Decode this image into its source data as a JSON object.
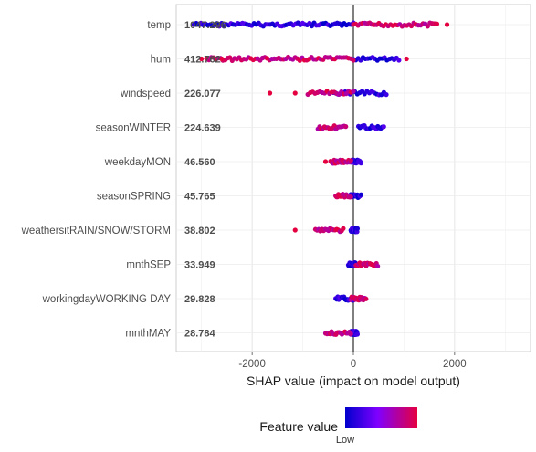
{
  "chart_data": {
    "type": "scatter",
    "subtype": "shap-summary",
    "xlabel": "SHAP value (impact on model output)",
    "xlim": [
      -3500,
      3500
    ],
    "x_ticks": [
      -2000,
      0,
      2000
    ],
    "x_tick_labels": [
      "-2000",
      "0",
      "2000"
    ],
    "grid": true,
    "zero_line": true,
    "features": [
      {
        "name": "temp",
        "mean_abs_shap": "1047.296",
        "low_range": [
          -3150,
          0
        ],
        "high_range": [
          0,
          1650
        ],
        "outliers": [
          {
            "x": -3100,
            "level": "low"
          },
          {
            "x": 1850,
            "level": "high"
          }
        ]
      },
      {
        "name": "hum",
        "mean_abs_shap": "412.762",
        "low_range": [
          0,
          900
        ],
        "high_range": [
          -2900,
          0
        ],
        "outliers": [
          {
            "x": -3000,
            "level": "high"
          },
          {
            "x": -2600,
            "level": "high"
          },
          {
            "x": 1050,
            "level": "high"
          }
        ]
      },
      {
        "name": "windspeed",
        "mean_abs_shap": "226.077",
        "low_range": [
          -400,
          650
        ],
        "high_range": [
          -900,
          0
        ],
        "outliers": [
          {
            "x": -1650,
            "level": "high"
          },
          {
            "x": -1150,
            "level": "high"
          }
        ]
      },
      {
        "name": "seasonWINTER",
        "mean_abs_shap": "224.639",
        "low_range": [
          100,
          600
        ],
        "high_range": [
          -700,
          -150
        ],
        "outliers": []
      },
      {
        "name": "weekdayMON",
        "mean_abs_shap": "46.560",
        "low_range": [
          -50,
          150
        ],
        "high_range": [
          -450,
          -50
        ],
        "outliers": [
          {
            "x": -550,
            "level": "high"
          }
        ]
      },
      {
        "name": "seasonSPRING",
        "mean_abs_shap": "45.765",
        "low_range": [
          -50,
          150
        ],
        "high_range": [
          -350,
          -50
        ],
        "outliers": []
      },
      {
        "name": "weathersitRAIN/SNOW/STORM",
        "mean_abs_shap": "38.802",
        "low_range": [
          -50,
          80
        ],
        "high_range": [
          -750,
          -200
        ],
        "outliers": [
          {
            "x": -1150,
            "level": "high"
          }
        ]
      },
      {
        "name": "mnthSEP",
        "mean_abs_shap": "33.949",
        "low_range": [
          -100,
          50
        ],
        "high_range": [
          50,
          480
        ],
        "outliers": []
      },
      {
        "name": "workingdayWORKING DAY",
        "mean_abs_shap": "29.828",
        "low_range": [
          -350,
          0
        ],
        "high_range": [
          -50,
          250
        ],
        "outliers": []
      },
      {
        "name": "mnthMAY",
        "mean_abs_shap": "28.784",
        "low_range": [
          -50,
          80
        ],
        "high_range": [
          -550,
          -50
        ],
        "outliers": []
      }
    ],
    "legend": {
      "title": "Feature value",
      "low_label": "Low",
      "low_color": "#0000cc",
      "mid_color": "#7f00ff",
      "high_color": "#e5003f",
      "placement": "bottom"
    }
  }
}
